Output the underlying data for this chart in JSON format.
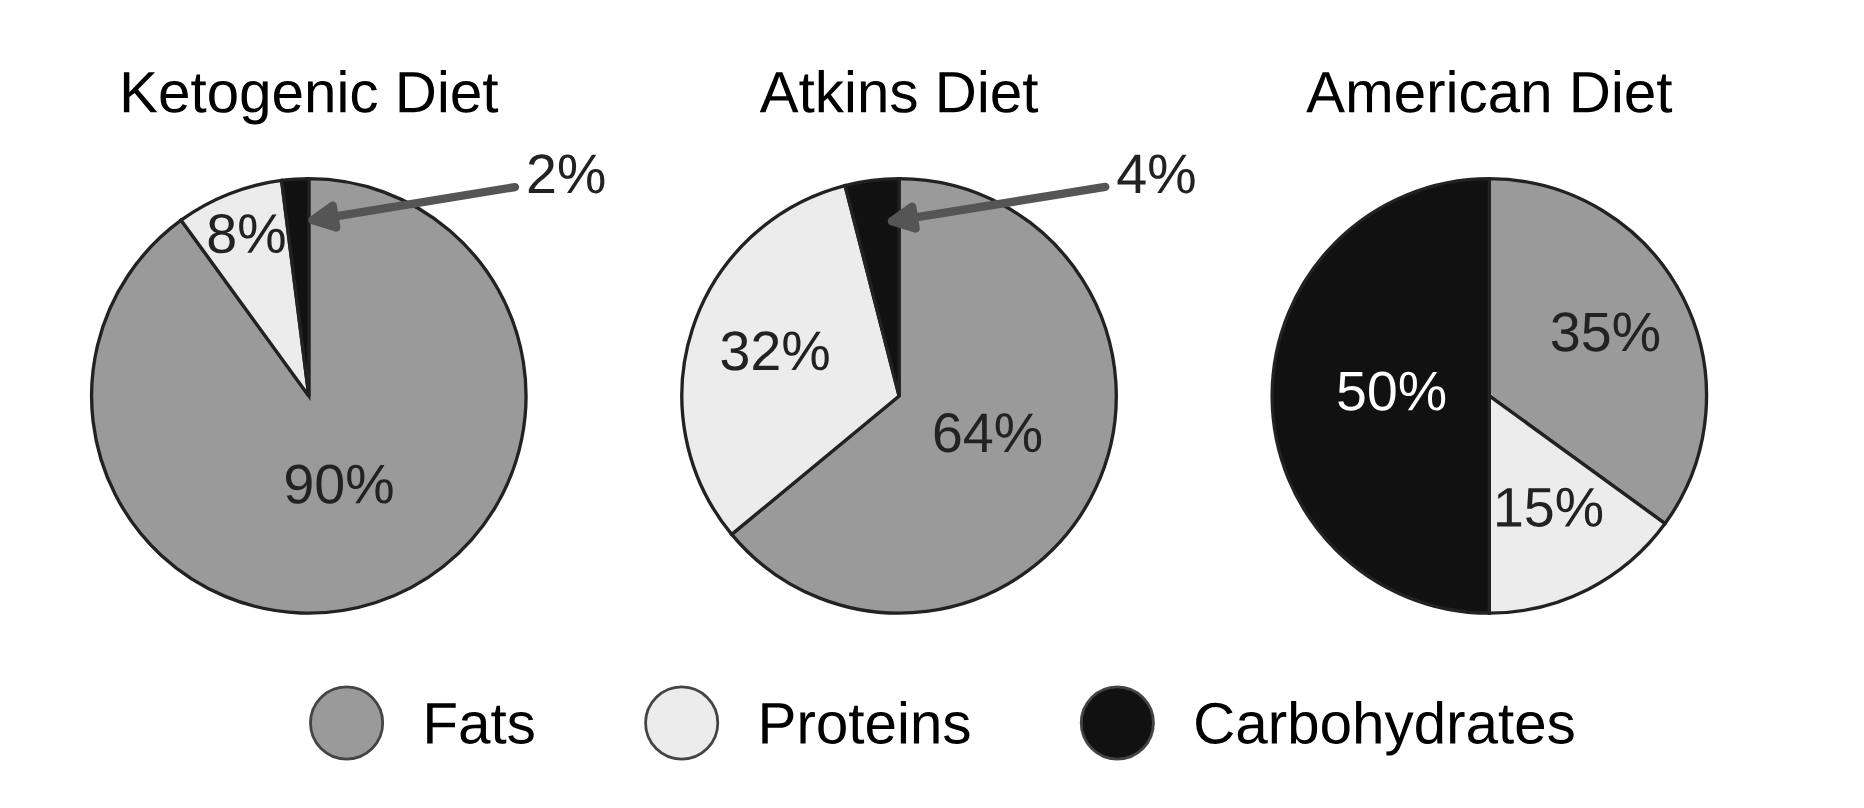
{
  "chart_data": {
    "type": "pie",
    "categories": [
      "Fats",
      "Proteins",
      "Carbohydrates"
    ],
    "colors": [
      "#9a9a9a",
      "#ececec",
      "#111111"
    ],
    "legend": "bottom",
    "series": [
      {
        "name": "Ketogenic Diet",
        "values": [
          90,
          8,
          2
        ],
        "value_labels": [
          "90%",
          "8%",
          "2%"
        ]
      },
      {
        "name": "Atkins Diet",
        "values": [
          64,
          32,
          4
        ],
        "value_labels": [
          "64%",
          "32%",
          "4%"
        ]
      },
      {
        "name": "American Diet",
        "values": [
          35,
          15,
          50
        ],
        "value_labels": [
          "35%",
          "15%",
          "50%"
        ]
      }
    ]
  }
}
